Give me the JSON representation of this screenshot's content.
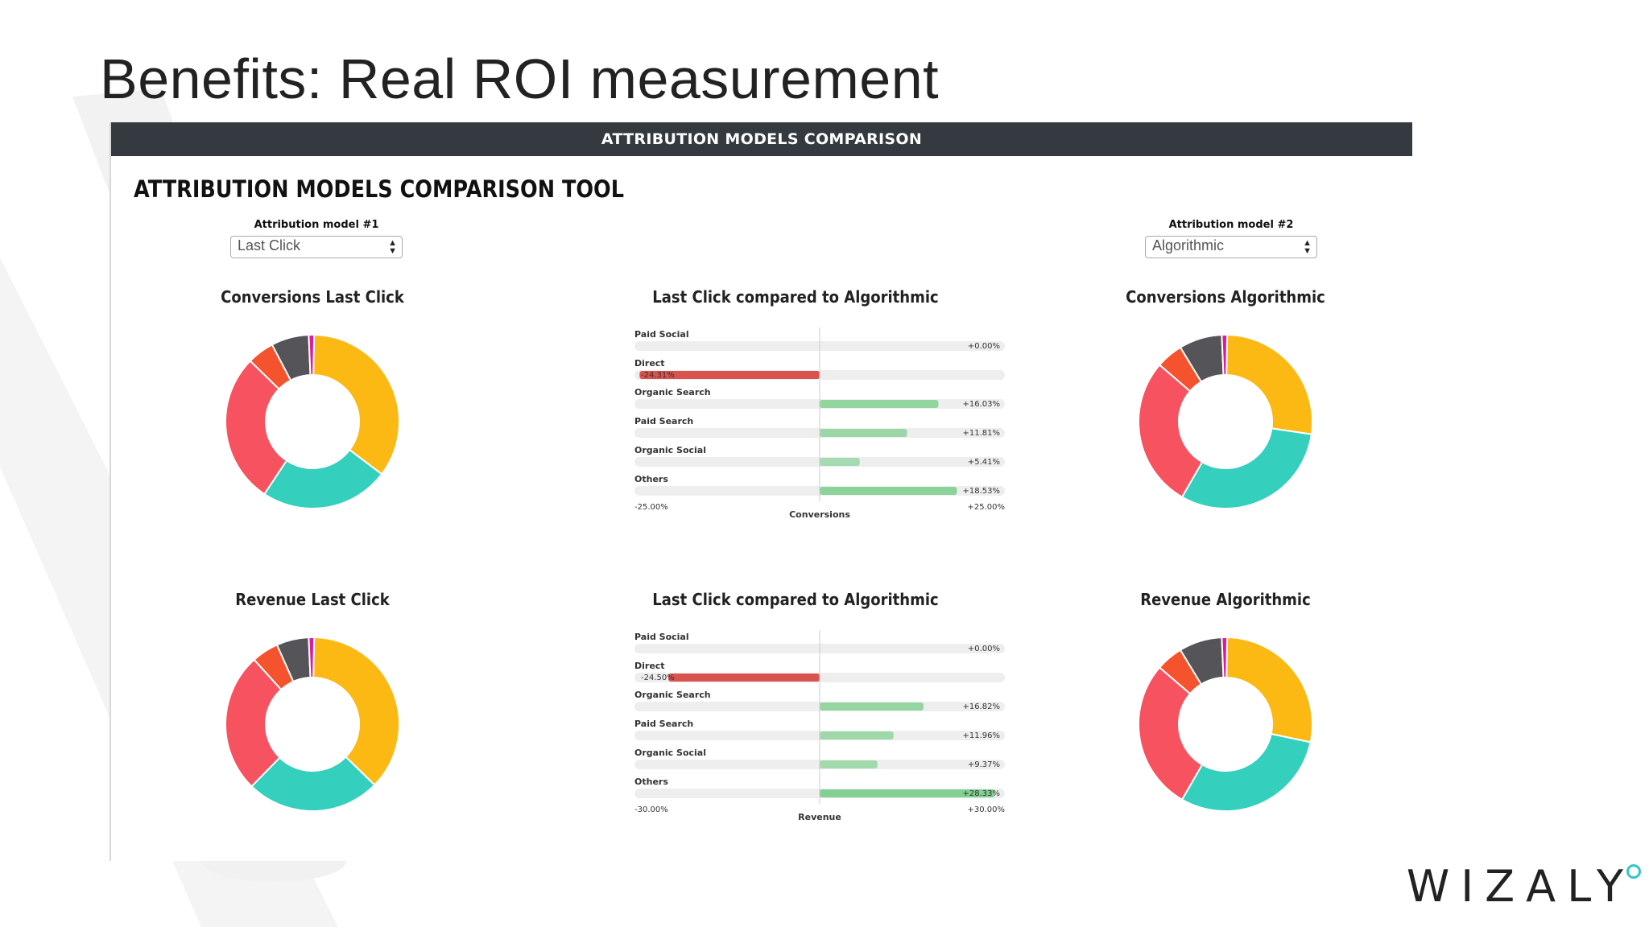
{
  "slide": {
    "title": "Benefits: Real ROI measurement"
  },
  "header": {
    "title": "ATTRIBUTION MODELS COMPARISON"
  },
  "tool": {
    "title": "ATTRIBUTION MODELS COMPARISON TOOL"
  },
  "model1": {
    "label": "Attribution model #1",
    "value": "Last Click"
  },
  "model2": {
    "label": "Attribution model #2",
    "value": "Algorithmic"
  },
  "logo": {
    "text": "WIZALY"
  },
  "colors": {
    "yellow": "#fdb913",
    "teal": "#35cfbd",
    "red": "#f6525f",
    "orange": "#f5522e",
    "gray": "#545459",
    "magenta": "#e0189b",
    "bar_positive": "#7fcf8f",
    "bar_negative": "#d9534f",
    "track": "#eeeeee"
  },
  "chart_data": [
    {
      "type": "pie",
      "title": "Conversions Last Click",
      "donut": true,
      "slices": [
        {
          "color": "#fdb913",
          "value": 35
        },
        {
          "color": "#35cfbd",
          "value": 24
        },
        {
          "color": "#f6525f",
          "value": 28
        },
        {
          "color": "#f5522e",
          "value": 5
        },
        {
          "color": "#545459",
          "value": 7
        },
        {
          "color": "#e0189b",
          "value": 1
        }
      ]
    },
    {
      "type": "bar",
      "orientation": "horizontal",
      "title": "Last Click compared to Algorithmic",
      "xlabel": "Conversions",
      "xlim": [
        -25,
        25
      ],
      "xlim_labels": [
        "-25.00%",
        "+25.00%"
      ],
      "categories": [
        "Paid Social",
        "Direct",
        "Organic Search",
        "Paid Search",
        "Organic Social",
        "Others"
      ],
      "values": [
        0,
        -24.31,
        16.03,
        11.81,
        5.41,
        18.53
      ],
      "value_labels": [
        "+0.00%",
        "-24.31%",
        "+16.03%",
        "+11.81%",
        "+5.41%",
        "+18.53%"
      ]
    },
    {
      "type": "pie",
      "title": "Conversions Algorithmic",
      "donut": true,
      "slices": [
        {
          "color": "#fdb913",
          "value": 27
        },
        {
          "color": "#35cfbd",
          "value": 31
        },
        {
          "color": "#f6525f",
          "value": 28
        },
        {
          "color": "#f5522e",
          "value": 5
        },
        {
          "color": "#545459",
          "value": 8
        },
        {
          "color": "#e0189b",
          "value": 1
        }
      ]
    },
    {
      "type": "pie",
      "title": "Revenue Last Click",
      "donut": true,
      "slices": [
        {
          "color": "#fdb913",
          "value": 37
        },
        {
          "color": "#35cfbd",
          "value": 25
        },
        {
          "color": "#f6525f",
          "value": 26
        },
        {
          "color": "#f5522e",
          "value": 5
        },
        {
          "color": "#545459",
          "value": 6
        },
        {
          "color": "#e0189b",
          "value": 1
        }
      ]
    },
    {
      "type": "bar",
      "orientation": "horizontal",
      "title": "Last Click compared to Algorithmic",
      "xlabel": "Revenue",
      "xlim": [
        -30,
        30
      ],
      "xlim_labels": [
        "-30.00%",
        "+30.00%"
      ],
      "categories": [
        "Paid Social",
        "Direct",
        "Organic Search",
        "Paid Search",
        "Organic Social",
        "Others"
      ],
      "values": [
        0,
        -24.5,
        16.82,
        11.96,
        9.37,
        28.33
      ],
      "value_labels": [
        "+0.00%",
        "-24.50%",
        "+16.82%",
        "+11.96%",
        "+9.37%",
        "+28.33%"
      ]
    },
    {
      "type": "pie",
      "title": "Revenue Algorithmic",
      "donut": true,
      "slices": [
        {
          "color": "#fdb913",
          "value": 28
        },
        {
          "color": "#35cfbd",
          "value": 30
        },
        {
          "color": "#f6525f",
          "value": 28
        },
        {
          "color": "#f5522e",
          "value": 5
        },
        {
          "color": "#545459",
          "value": 8
        },
        {
          "color": "#e0189b",
          "value": 1
        }
      ]
    }
  ]
}
